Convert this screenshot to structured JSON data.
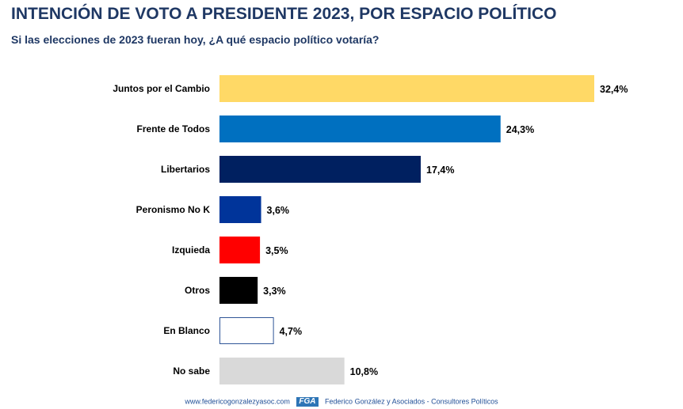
{
  "title": "INTENCIÓN DE VOTO A PRESIDENTE 2023, POR ESPACIO POLÍTICO",
  "subtitle": "Si las elecciones de 2023 fueran hoy, ¿A qué espacio político votaría?",
  "footer": {
    "url": "www.federicogonzalezyasoc.com",
    "logo": "FGA",
    "company": "Federico González y Asociados - Consultores Políticos"
  },
  "chart_data": {
    "type": "bar",
    "orientation": "horizontal",
    "title": "INTENCIÓN DE VOTO A PRESIDENTE 2023, POR ESPACIO POLÍTICO",
    "subtitle": "Si las elecciones de 2023 fueran hoy, ¿A qué espacio político votaría?",
    "xlabel": "",
    "ylabel": "",
    "xlim": [
      0,
      32.4
    ],
    "grid": false,
    "legend": "none",
    "categories": [
      "Juntos por el Cambio",
      "Frente de Todos",
      "Libertarios",
      "Peronismo No K",
      "Izquieda",
      "Otros",
      "En Blanco",
      "No sabe"
    ],
    "values": [
      32.4,
      24.3,
      17.4,
      3.6,
      3.5,
      3.3,
      4.7,
      10.8
    ],
    "value_labels": [
      "32,4%",
      "24,3%",
      "17,4%",
      "3,6%",
      "3,5%",
      "3,3%",
      "4,7%",
      "10,8%"
    ],
    "colors": [
      "#ffd966",
      "#0070c0",
      "#002060",
      "#00349a",
      "#ff0000",
      "#000000",
      "#ffffff",
      "#d9d9d9"
    ],
    "outline_colors": [
      "none",
      "none",
      "none",
      "none",
      "none",
      "none",
      "#2f5597",
      "none"
    ]
  }
}
